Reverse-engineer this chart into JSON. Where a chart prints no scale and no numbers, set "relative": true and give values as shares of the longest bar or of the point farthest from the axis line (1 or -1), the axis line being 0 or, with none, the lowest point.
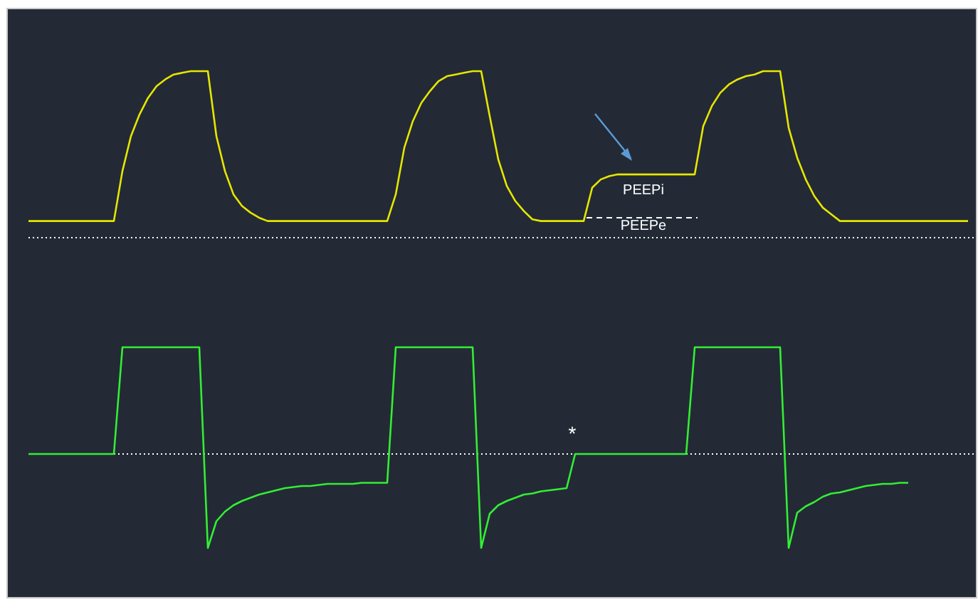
{
  "chart_data": [
    {
      "type": "line",
      "relative": true,
      "grid": false,
      "annotations": [
        "PEEPi",
        "PEEPe"
      ],
      "categories": [
        null,
        null,
        null,
        null,
        null,
        null,
        null,
        null,
        null,
        null,
        null,
        null,
        null,
        null,
        null,
        null,
        null,
        null,
        null,
        null,
        null,
        null,
        null,
        null,
        null,
        null,
        null,
        null,
        null,
        null,
        null,
        null,
        null,
        null,
        null,
        null,
        null,
        null,
        null,
        null,
        null,
        null,
        null,
        null,
        null,
        null,
        null,
        null,
        null,
        null,
        null,
        null,
        null,
        null,
        null,
        null,
        null,
        null,
        null,
        null,
        null,
        null,
        null,
        null,
        null,
        null,
        null,
        null,
        null,
        null,
        null,
        null,
        null,
        null,
        null,
        null,
        null,
        null,
        null,
        null,
        null,
        null,
        null,
        null,
        null,
        null,
        null,
        null,
        null,
        null,
        null,
        null,
        null,
        null,
        null,
        null,
        null,
        null,
        null,
        null,
        null,
        null,
        null,
        null,
        null,
        null,
        null,
        null,
        null,
        null,
        null
      ],
      "series": [
        {
          "color": "#e6e600",
          "line_style": "solid",
          "values": [
            0.1,
            0.1,
            0.1,
            0.1,
            0.1,
            0.1,
            0.1,
            0.1,
            0.1,
            0.1,
            0.1,
            0.4,
            0.61,
            0.74,
            0.84,
            0.91,
            0.95,
            0.98,
            0.99,
            1,
            1,
            1,
            0.61,
            0.4,
            0.26,
            0.19,
            0.15,
            0.12,
            0.1,
            0.1,
            0.1,
            0.1,
            0.1,
            0.1,
            0.1,
            0.1,
            0.1,
            0.1,
            0.1,
            0.1,
            0.1,
            0.1,
            0.1,
            0.26,
            0.54,
            0.7,
            0.81,
            0.88,
            0.94,
            0.97,
            0.98,
            0.99,
            1,
            1,
            0.73,
            0.47,
            0.31,
            0.22,
            0.16,
            0.11,
            0.1,
            0.1,
            0.1,
            0.1,
            0.1,
            0.1,
            0.3,
            0.35,
            0.37,
            0.38,
            0.38,
            0.38,
            0.38,
            0.38,
            0.38,
            0.38,
            0.38,
            0.38,
            0.38,
            0.67,
            0.79,
            0.87,
            0.92,
            0.95,
            0.97,
            0.98,
            1,
            1,
            1,
            0.66,
            0.48,
            0.35,
            0.25,
            0.18,
            0.14,
            0.1,
            0.1,
            0.1,
            0.1,
            0.1,
            0.1,
            0.1,
            0.1,
            0.1,
            0.1,
            0.1,
            0.1,
            0.1,
            0.1,
            0.1,
            0.1
          ]
        }
      ]
    },
    {
      "type": "line",
      "relative": true,
      "grid": false,
      "annotations": [
        "*"
      ],
      "ref_lines": [
        {
          "axis": "y",
          "value": 0,
          "color": "#ffffff",
          "line_style": "dotted"
        }
      ],
      "categories": [
        null,
        null,
        null,
        null,
        null,
        null,
        null,
        null,
        null,
        null,
        null,
        null,
        null,
        null,
        null,
        null,
        null,
        null,
        null,
        null,
        null,
        null,
        null,
        null,
        null,
        null,
        null,
        null,
        null,
        null,
        null,
        null,
        null,
        null,
        null,
        null,
        null,
        null,
        null,
        null,
        null,
        null,
        null,
        null,
        null,
        null,
        null,
        null,
        null,
        null,
        null,
        null,
        null,
        null,
        null,
        null,
        null,
        null,
        null,
        null,
        null,
        null,
        null,
        null,
        null,
        null,
        null,
        null,
        null,
        null,
        null,
        null,
        null,
        null,
        null,
        null,
        null,
        null,
        null,
        null,
        null,
        null,
        null,
        null,
        null,
        null,
        null,
        null,
        null,
        null,
        null,
        null,
        null,
        null,
        null,
        null,
        null,
        null,
        null,
        null,
        null,
        null,
        null,
        null,
        null,
        null,
        null,
        null,
        null,
        null,
        null
      ],
      "series": [
        {
          "color": "#33ee33",
          "line_style": "solid",
          "values": [
            0,
            0,
            0,
            0,
            0,
            0,
            0,
            0,
            0,
            0,
            0,
            1,
            1,
            1,
            1,
            1,
            1,
            1,
            1,
            1,
            1,
            -0.88,
            -0.63,
            -0.54,
            -0.48,
            -0.44,
            -0.41,
            -0.38,
            -0.36,
            -0.34,
            -0.32,
            -0.31,
            -0.3,
            -0.3,
            -0.29,
            -0.28,
            -0.28,
            -0.28,
            -0.28,
            -0.27,
            -0.27,
            -0.27,
            -0.27,
            1,
            1,
            1,
            1,
            1,
            1,
            1,
            1,
            1,
            1,
            -0.88,
            -0.56,
            -0.48,
            -0.44,
            -0.41,
            -0.38,
            -0.37,
            -0.35,
            -0.34,
            -0.33,
            -0.32,
            0,
            0,
            0,
            0,
            0,
            0,
            0,
            0,
            0,
            0,
            0,
            0,
            0,
            0,
            1,
            1,
            1,
            1,
            1,
            1,
            1,
            1,
            1,
            1,
            1,
            -0.88,
            -0.55,
            -0.49,
            -0.45,
            -0.4,
            -0.37,
            -0.36,
            -0.34,
            -0.32,
            -0.3,
            -0.29,
            -0.28,
            -0.28,
            -0.27,
            -0.27,
            null,
            null,
            null,
            null,
            null,
            null,
            null
          ]
        }
      ]
    }
  ]
}
